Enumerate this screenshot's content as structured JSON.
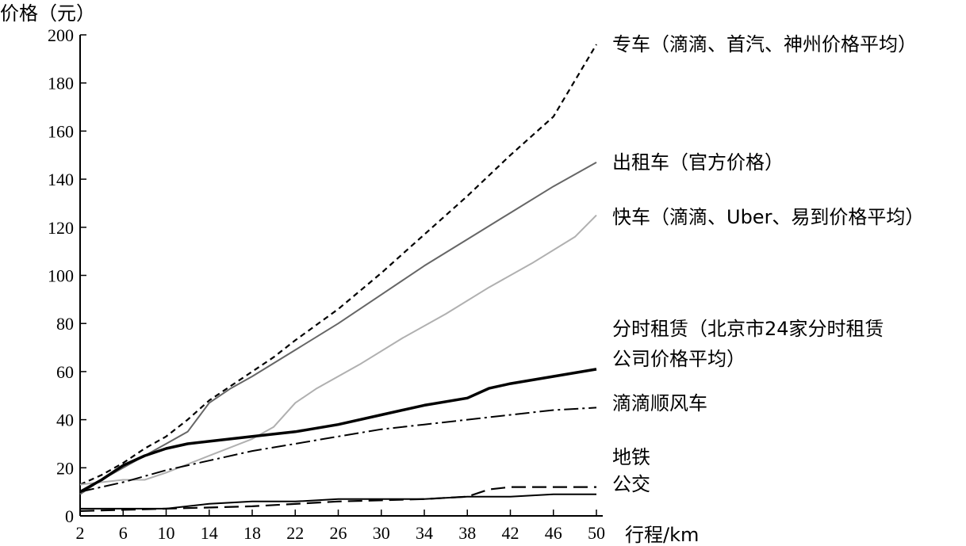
{
  "chart_data": {
    "type": "line",
    "ylabel": "价格（元）",
    "xlabel": "行程/km",
    "xlim": [
      2,
      50
    ],
    "ylim": [
      0,
      200
    ],
    "x_ticks": [
      2,
      6,
      10,
      14,
      18,
      22,
      26,
      30,
      34,
      38,
      42,
      46,
      50
    ],
    "y_ticks": [
      0,
      20,
      40,
      60,
      80,
      100,
      120,
      140,
      160,
      180,
      200
    ],
    "x_tick_labels": [
      "2",
      "6",
      "10",
      "14",
      "18",
      "22",
      "26",
      "30",
      "34",
      "38",
      "42",
      "46",
      "50"
    ],
    "y_tick_labels": [
      "0",
      "20",
      "40",
      "60",
      "80",
      "100",
      "120",
      "140",
      "160",
      "180",
      "200"
    ],
    "grid": false,
    "legend_placement": "inline-right",
    "series": [
      {
        "name": "专车（滴滴、首汽、神州价格平均）",
        "color": "#000000",
        "style": "dotted",
        "points": [
          [
            2,
            13
          ],
          [
            4,
            17
          ],
          [
            6,
            22
          ],
          [
            8,
            28
          ],
          [
            10,
            33
          ],
          [
            12,
            40
          ],
          [
            14,
            48
          ],
          [
            16,
            54
          ],
          [
            18,
            60
          ],
          [
            20,
            66
          ],
          [
            22,
            73
          ],
          [
            26,
            86
          ],
          [
            30,
            101
          ],
          [
            34,
            117
          ],
          [
            38,
            133
          ],
          [
            42,
            150
          ],
          [
            46,
            166
          ],
          [
            50,
            196
          ]
        ],
        "label_lines": [
          "专车（滴滴、首汽、神州价格平均）"
        ]
      },
      {
        "name": "出租车（官方价格）",
        "color": "#666666",
        "style": "solid-thin",
        "points": [
          [
            2,
            9
          ],
          [
            4,
            15
          ],
          [
            6,
            20
          ],
          [
            8,
            25
          ],
          [
            10,
            30
          ],
          [
            12,
            35
          ],
          [
            13,
            41
          ],
          [
            14,
            47
          ],
          [
            16,
            53
          ],
          [
            18,
            58
          ],
          [
            22,
            69
          ],
          [
            26,
            80
          ],
          [
            30,
            92
          ],
          [
            34,
            104
          ],
          [
            38,
            115
          ],
          [
            42,
            126
          ],
          [
            46,
            137
          ],
          [
            50,
            147
          ]
        ],
        "label_lines": [
          "出租车（官方价格）"
        ]
      },
      {
        "name": "快车（滴滴、Uber、易到价格平均）",
        "color": "#b0b0b0",
        "style": "solid-thin",
        "points": [
          [
            2,
            13
          ],
          [
            4,
            14
          ],
          [
            6,
            15
          ],
          [
            8,
            15
          ],
          [
            10,
            18
          ],
          [
            14,
            25
          ],
          [
            18,
            32
          ],
          [
            20,
            37
          ],
          [
            22,
            47
          ],
          [
            24,
            53
          ],
          [
            28,
            63
          ],
          [
            32,
            74
          ],
          [
            36,
            84
          ],
          [
            40,
            95
          ],
          [
            44,
            105
          ],
          [
            48,
            116
          ],
          [
            50,
            125
          ]
        ],
        "label_lines": [
          "快车（滴滴、Uber、易到价格平均）"
        ]
      },
      {
        "name": "分时租赁（北京市24家分时租赁公司价格平均）",
        "color": "#000000",
        "style": "solid-thick",
        "points": [
          [
            2,
            10
          ],
          [
            4,
            15
          ],
          [
            6,
            21
          ],
          [
            8,
            25
          ],
          [
            10,
            28
          ],
          [
            12,
            30
          ],
          [
            14,
            31
          ],
          [
            18,
            33
          ],
          [
            22,
            35
          ],
          [
            26,
            38
          ],
          [
            30,
            42
          ],
          [
            34,
            46
          ],
          [
            38,
            49
          ],
          [
            40,
            53
          ],
          [
            42,
            55
          ],
          [
            46,
            58
          ],
          [
            50,
            61
          ]
        ],
        "label_lines": [
          "分时租赁（北京市24家分时租赁",
          "公司价格平均）"
        ]
      },
      {
        "name": "滴滴顺风车",
        "color": "#000000",
        "style": "dashdot",
        "points": [
          [
            2,
            10
          ],
          [
            6,
            14
          ],
          [
            10,
            19
          ],
          [
            14,
            23
          ],
          [
            18,
            27
          ],
          [
            22,
            30
          ],
          [
            26,
            33
          ],
          [
            30,
            36
          ],
          [
            34,
            38
          ],
          [
            38,
            40
          ],
          [
            42,
            42
          ],
          [
            46,
            44
          ],
          [
            50,
            45
          ]
        ],
        "label_lines": [
          "滴滴顺风车"
        ]
      },
      {
        "name": "地铁",
        "color": "#000000",
        "style": "dashed",
        "points": [
          [
            2,
            2
          ],
          [
            10,
            3
          ],
          [
            18,
            4
          ],
          [
            26,
            6
          ],
          [
            34,
            7
          ],
          [
            38,
            8
          ],
          [
            40,
            11
          ],
          [
            42,
            12
          ],
          [
            50,
            12
          ]
        ],
        "label_lines": [
          "地铁"
        ]
      },
      {
        "name": "公交",
        "color": "#000000",
        "style": "solid-thin",
        "points": [
          [
            2,
            3
          ],
          [
            10,
            3
          ],
          [
            14,
            5
          ],
          [
            18,
            6
          ],
          [
            22,
            6
          ],
          [
            26,
            7
          ],
          [
            30,
            7
          ],
          [
            34,
            7
          ],
          [
            38,
            8
          ],
          [
            42,
            8
          ],
          [
            46,
            9
          ],
          [
            50,
            9
          ]
        ],
        "label_lines": [
          "公交"
        ]
      }
    ]
  }
}
